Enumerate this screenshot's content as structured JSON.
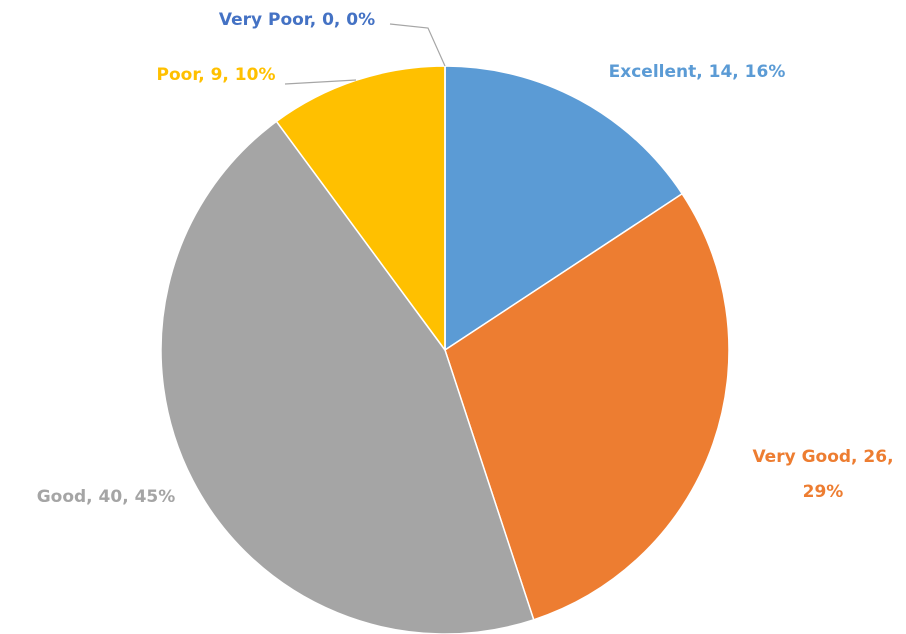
{
  "chart_data": {
    "type": "pie",
    "categories": [
      "Excellent",
      "Very Good",
      "Good",
      "Poor",
      "Very Poor"
    ],
    "values": [
      14,
      26,
      40,
      9,
      0
    ],
    "value_labels": [
      "Excellent, 14, 16%",
      "Very Good, 26, 29%",
      "Good, 40, 45%",
      "Poor, 9, 10%",
      "Very Poor, 0, 0%"
    ],
    "colors": [
      "#5b9bd5",
      "#ed7d31",
      "#a5a5a5",
      "#ffc000",
      "#4472c4"
    ]
  }
}
